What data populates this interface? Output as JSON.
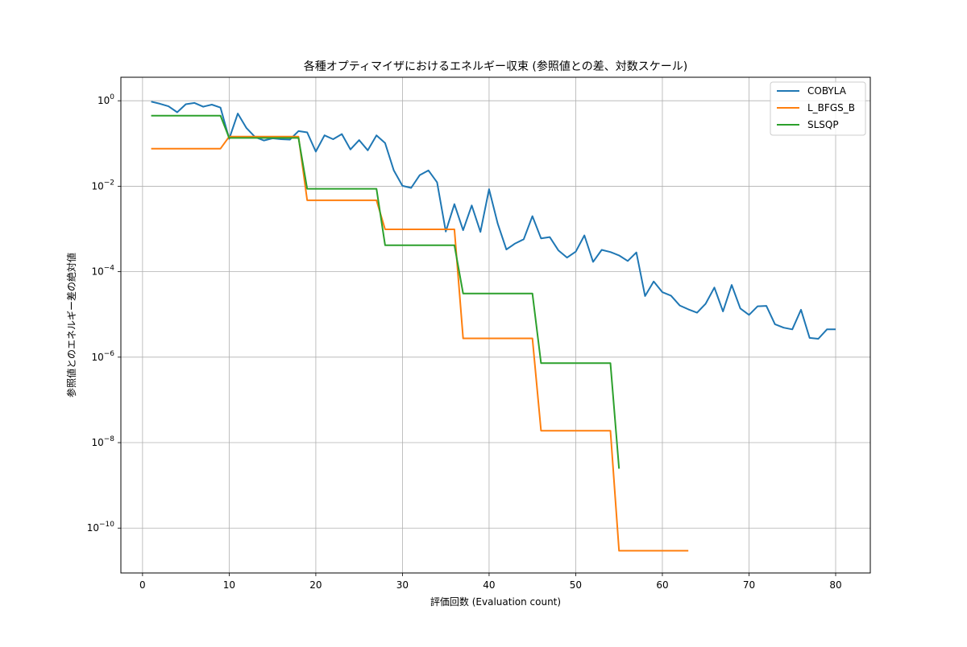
{
  "chart_data": {
    "type": "line",
    "title": "各種オプティマイザにおけるエネルギー収束 (参照値との差、対数スケール)",
    "xlabel": "評価回数 (Evaluation count)",
    "ylabel": "参照値とのエネルギー差の絶対値",
    "xlim": [
      -2.5,
      84.0
    ],
    "ylim_log10": [
      -11.05,
      0.55
    ],
    "yscale": "log",
    "grid": true,
    "legend_position": "upper-right",
    "x_ticks": [
      {
        "value": 0,
        "label": "0"
      },
      {
        "value": 10,
        "label": "10"
      },
      {
        "value": 20,
        "label": "20"
      },
      {
        "value": 30,
        "label": "30"
      },
      {
        "value": 40,
        "label": "40"
      },
      {
        "value": 50,
        "label": "50"
      },
      {
        "value": 60,
        "label": "60"
      },
      {
        "value": 70,
        "label": "70"
      },
      {
        "value": 80,
        "label": "80"
      }
    ],
    "y_ticks": [
      {
        "exp": 0,
        "base": "10",
        "sup": "0"
      },
      {
        "exp": -2,
        "base": "10",
        "sup": "−2"
      },
      {
        "exp": -4,
        "base": "10",
        "sup": "−4"
      },
      {
        "exp": -6,
        "base": "10",
        "sup": "−6"
      },
      {
        "exp": -8,
        "base": "10",
        "sup": "−8"
      },
      {
        "exp": -10,
        "base": "10",
        "sup": "−10"
      }
    ],
    "series": [
      {
        "name": "COBYLA",
        "color": "#1f77b4",
        "x": [
          1,
          2,
          3,
          4,
          5,
          6,
          7,
          8,
          9,
          10,
          11,
          12,
          13,
          14,
          15,
          16,
          17,
          18,
          19,
          20,
          21,
          22,
          23,
          24,
          25,
          26,
          27,
          28,
          29,
          30,
          31,
          32,
          33,
          34,
          35,
          36,
          37,
          38,
          39,
          40,
          41,
          42,
          43,
          44,
          45,
          46,
          47,
          48,
          49,
          50,
          51,
          52,
          53,
          54,
          55,
          56,
          57,
          58,
          59,
          60,
          61,
          62,
          63,
          64,
          65,
          66,
          67,
          68,
          69,
          70,
          71,
          72,
          73,
          74,
          75,
          76,
          77,
          78,
          79,
          80
        ],
        "log10_y": [
          -0.02,
          -0.07,
          -0.13,
          -0.27,
          -0.08,
          -0.05,
          -0.14,
          -0.09,
          -0.16,
          -0.89,
          -0.3,
          -0.64,
          -0.85,
          -0.93,
          -0.88,
          -0.9,
          -0.91,
          -0.71,
          -0.74,
          -1.19,
          -0.81,
          -0.9,
          -0.78,
          -1.14,
          -0.92,
          -1.16,
          -0.81,
          -0.99,
          -1.63,
          -1.99,
          -2.04,
          -1.74,
          -1.63,
          -1.91,
          -3.06,
          -2.42,
          -3.03,
          -2.45,
          -3.07,
          -2.07,
          -2.88,
          -3.48,
          -3.34,
          -3.24,
          -2.7,
          -3.22,
          -3.19,
          -3.5,
          -3.67,
          -3.53,
          -3.15,
          -3.77,
          -3.49,
          -3.54,
          -3.62,
          -3.75,
          -3.55,
          -4.57,
          -4.23,
          -4.48,
          -4.56,
          -4.79,
          -4.88,
          -4.96,
          -4.75,
          -4.37,
          -4.93,
          -4.31,
          -4.86,
          -5.01,
          -4.81,
          -4.8,
          -5.23,
          -5.31,
          -5.35,
          -4.89,
          -5.55,
          -5.57,
          -5.35,
          -5.35
        ]
      },
      {
        "name": "L_BFGS_B",
        "color": "#ff7f0e",
        "x": [
          1,
          9,
          10,
          18,
          19,
          27,
          28,
          36,
          37,
          45,
          46,
          54,
          55,
          63
        ],
        "log10_y": [
          -1.12,
          -1.12,
          -0.84,
          -0.84,
          -2.33,
          -2.33,
          -3.01,
          -3.01,
          -5.56,
          -5.56,
          -7.72,
          -7.72,
          -10.53,
          -10.53
        ]
      },
      {
        "name": "SLSQP",
        "color": "#2ca02c",
        "x": [
          1,
          9,
          10,
          18,
          19,
          27,
          28,
          36,
          37,
          45,
          46,
          54,
          55
        ],
        "log10_y": [
          -0.35,
          -0.35,
          -0.87,
          -0.87,
          -2.06,
          -2.06,
          -3.38,
          -3.38,
          -4.51,
          -4.51,
          -6.14,
          -6.14,
          -8.61
        ]
      }
    ]
  }
}
